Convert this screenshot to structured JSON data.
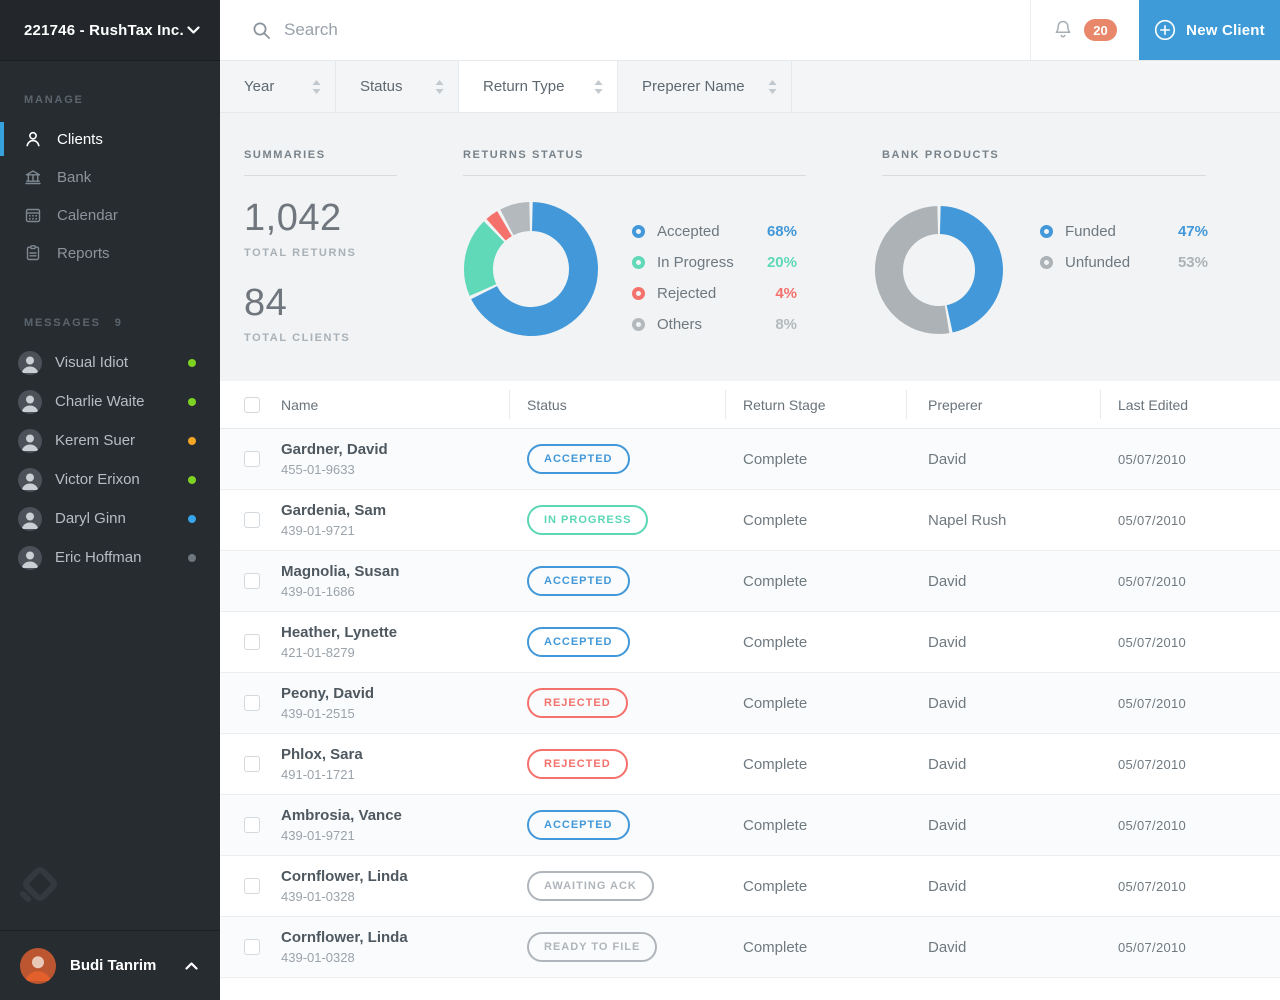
{
  "sidebar": {
    "company": "221746 - RushTax Inc.",
    "manage_label": "MANAGE",
    "nav": [
      {
        "label": "Clients",
        "icon": "user-icon",
        "active": true
      },
      {
        "label": "Bank",
        "icon": "bank-icon",
        "active": false
      },
      {
        "label": "Calendar",
        "icon": "calendar-icon",
        "active": false
      },
      {
        "label": "Reports",
        "icon": "reports-icon",
        "active": false
      }
    ],
    "messages_label": "MESSAGES",
    "messages_count": "9",
    "messages": [
      {
        "name": "Visual Idiot",
        "presence": "green"
      },
      {
        "name": "Charlie Waite",
        "presence": "green"
      },
      {
        "name": "Kerem Suer",
        "presence": "orange"
      },
      {
        "name": "Victor Erixon",
        "presence": "green"
      },
      {
        "name": "Daryl Ginn",
        "presence": "blue"
      },
      {
        "name": "Eric Hoffman",
        "presence": "gray"
      }
    ],
    "user": {
      "name": "Budi Tanrim"
    }
  },
  "topbar": {
    "search_placeholder": "Search",
    "notification_count": "20",
    "new_client_label": "New Client"
  },
  "filters": [
    {
      "label": "Year",
      "active": false
    },
    {
      "label": "Status",
      "active": false
    },
    {
      "label": "Return Type",
      "active": true
    },
    {
      "label": "Preperer Name",
      "active": false
    }
  ],
  "summaries": {
    "title": "SUMMARIES",
    "total_returns_value": "1,042",
    "total_returns_label": "TOTAL RETURNS",
    "total_clients_value": "84",
    "total_clients_label": "TOTAL CLIENTS"
  },
  "chart_data": [
    {
      "type": "pie",
      "donut": true,
      "title": "RETURNS STATUS",
      "labels": [
        "Accepted",
        "In Progress",
        "Rejected",
        "Others"
      ],
      "values": [
        68,
        20,
        4,
        8
      ],
      "value_labels": [
        "68%",
        "20%",
        "4%",
        "8%"
      ],
      "colors": [
        "#4298D8",
        "#5FD9B8",
        "#F4716C",
        "#B3B9BD"
      ],
      "legend_position": "right",
      "start_angle": "top",
      "direction": "clockwise"
    },
    {
      "type": "pie",
      "donut": true,
      "title": "BANK PRODUCTS",
      "labels": [
        "Funded",
        "Unfunded"
      ],
      "values": [
        47,
        53
      ],
      "value_labels": [
        "47%",
        "53%"
      ],
      "colors": [
        "#4298D8",
        "#ACB2B6"
      ],
      "legend_position": "right",
      "start_angle": "top",
      "direction": "clockwise"
    }
  ],
  "table": {
    "columns": [
      "Name",
      "Status",
      "Return Stage",
      "Preperer",
      "Last Edited"
    ],
    "rows": [
      {
        "name": "Gardner, David",
        "ssn": "455-01-9633",
        "status": "ACCEPTED",
        "status_type": "accepted",
        "stage": "Complete",
        "preparer": "David",
        "last_edited": "05/07/2010"
      },
      {
        "name": "Gardenia, Sam",
        "ssn": "439-01-9721",
        "status": "IN PROGRESS",
        "status_type": "in-progress",
        "stage": "Complete",
        "preparer": "Napel Rush",
        "last_edited": "05/07/2010"
      },
      {
        "name": "Magnolia, Susan",
        "ssn": "439-01-1686",
        "status": "ACCEPTED",
        "status_type": "accepted",
        "stage": "Complete",
        "preparer": "David",
        "last_edited": "05/07/2010"
      },
      {
        "name": "Heather, Lynette",
        "ssn": "421-01-8279",
        "status": "ACCEPTED",
        "status_type": "accepted",
        "stage": "Complete",
        "preparer": "David",
        "last_edited": "05/07/2010"
      },
      {
        "name": "Peony, David",
        "ssn": "439-01-2515",
        "status": "REJECTED",
        "status_type": "rejected",
        "stage": "Complete",
        "preparer": "David",
        "last_edited": "05/07/2010"
      },
      {
        "name": "Phlox, Sara",
        "ssn": "491-01-1721",
        "status": "REJECTED",
        "status_type": "rejected",
        "stage": "Complete",
        "preparer": "David",
        "last_edited": "05/07/2010"
      },
      {
        "name": "Ambrosia, Vance",
        "ssn": "439-01-9721",
        "status": "ACCEPTED",
        "status_type": "accepted",
        "stage": "Complete",
        "preparer": "David",
        "last_edited": "05/07/2010"
      },
      {
        "name": "Cornflower, Linda",
        "ssn": "439-01-0328",
        "status": "AWAITING ACK",
        "status_type": "neutral",
        "stage": "Complete",
        "preparer": "David",
        "last_edited": "05/07/2010"
      },
      {
        "name": "Cornflower, Linda",
        "ssn": "439-01-0328",
        "status": "READY TO FILE",
        "status_type": "neutral",
        "stage": "Complete",
        "preparer": "David",
        "last_edited": "05/07/2010"
      }
    ]
  },
  "colors": {
    "accent_blue": "#3E9BD7",
    "active_nav_bar": "#36A1DC",
    "notification_badge": "#E8876A",
    "status_accepted": "#4298D8",
    "status_in_progress": "#5FD9B8",
    "status_rejected": "#F4716C",
    "status_neutral": "#AFB5BA",
    "sidebar_bg": "#272C31",
    "main_bg": "#F1F3F4"
  }
}
